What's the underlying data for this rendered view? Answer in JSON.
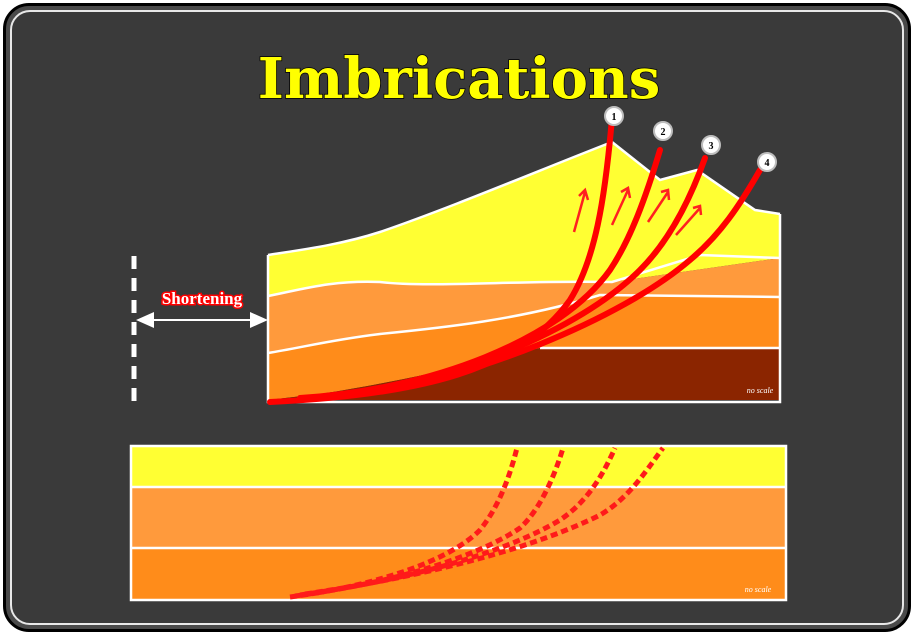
{
  "diagram": {
    "title": "Imbrications",
    "shortening_label": "Shortening",
    "scale_note_top": "no scale",
    "scale_note_bottom": "no scale",
    "fault_numbers": [
      "1",
      "2",
      "3",
      "4"
    ],
    "colors": {
      "background": "#3a3a3a",
      "title": "#ffff00",
      "layer_top": "#ffff33",
      "layer_middle": "#ff9933",
      "layer_lower": "#ff8c1a",
      "basement": "#8b2500",
      "fault": "#ff0000"
    }
  }
}
